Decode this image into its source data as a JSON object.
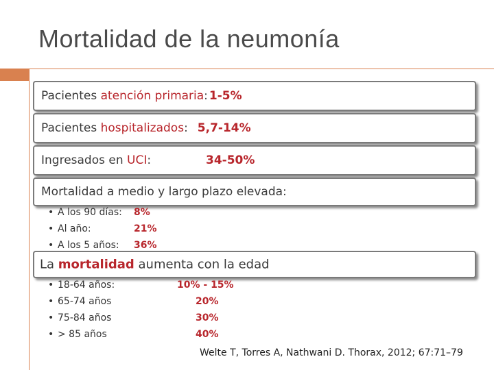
{
  "slide": {
    "title": "Mortalidad de la neumonía",
    "accent_color": "#d9814f",
    "highlight_color": "#b8262c"
  },
  "boxes": [
    {
      "label_prefix": "Pacientes ",
      "label_highlight": "atención primaria",
      "separator": ":",
      "value": "1-5%"
    },
    {
      "label_prefix": "Pacientes ",
      "label_highlight": "hospitalizados",
      "separator": ":",
      "value": "5,7-14%"
    },
    {
      "label_prefix": "Ingresados en ",
      "label_highlight": "UCI",
      "separator": ":",
      "value": "34-50%"
    },
    {
      "text": "Mortalidad a medio y largo plazo elevada:"
    },
    {
      "text_prefix": "La ",
      "text_highlight": "mortalidad",
      "text_suffix": " aumenta con la edad"
    }
  ],
  "long_term_list": {
    "bullet": "•",
    "items": [
      {
        "label": "A los 90 días:",
        "value": "8%"
      },
      {
        "label": "Al año:",
        "value": "21%"
      },
      {
        "label": "A los 5 años:",
        "value": "36%"
      }
    ]
  },
  "age_list": {
    "bullet": "•",
    "items": [
      {
        "label": "18-64 años:",
        "value": "10% - 15%"
      },
      {
        "label": "65-74 años",
        "value": "20%"
      },
      {
        "label": "75-84 años",
        "value": "30%"
      },
      {
        "label": "> 85 años",
        "value": "40%"
      }
    ]
  },
  "citation": "Welte T, Torres A, Nathwani D. Thorax, 2012; 67:71–79"
}
